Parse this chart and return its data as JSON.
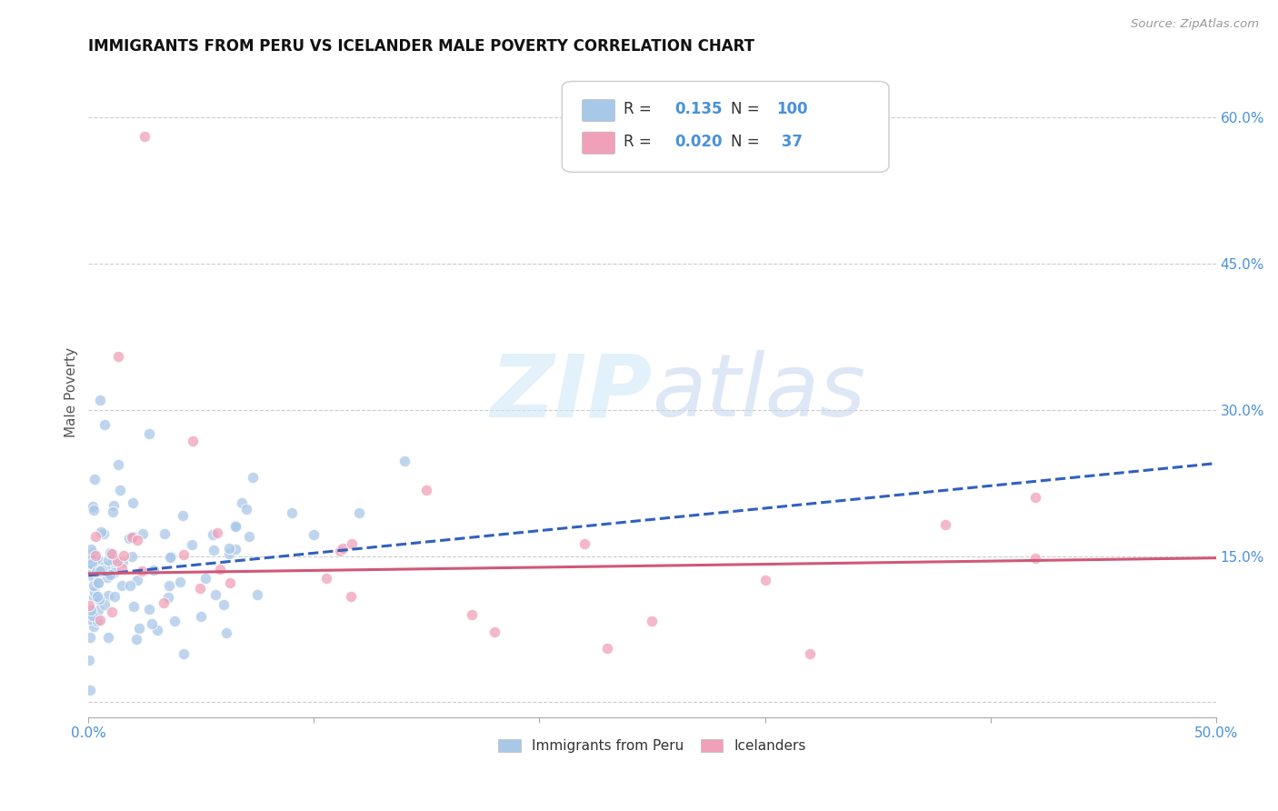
{
  "title": "IMMIGRANTS FROM PERU VS ICELANDER MALE POVERTY CORRELATION CHART",
  "source": "Source: ZipAtlas.com",
  "xlabel_label": "Immigrants from Peru",
  "ylabel_label": "Male Poverty",
  "x_min": 0.0,
  "x_max": 0.5,
  "y_min": -0.015,
  "y_max": 0.65,
  "blue_color": "#A8C8E8",
  "pink_color": "#F0A0B8",
  "blue_line_color": "#3060C0",
  "pink_line_color": "#D05878",
  "blue_line_start_y": 0.13,
  "blue_line_end_y": 0.245,
  "pink_line_start_y": 0.132,
  "pink_line_end_y": 0.148,
  "watermark_zip": "ZIP",
  "watermark_atlas": "atlas",
  "grid_color": "#CCCCCC",
  "title_fontsize": 12,
  "tick_color": "#4A90D9",
  "tick_fontsize": 11
}
